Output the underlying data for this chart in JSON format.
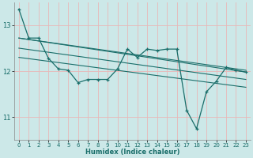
{
  "xlabel": "Humidex (Indice chaleur)",
  "ylabel": "",
  "background_color": "#cce8e8",
  "grid_color": "#e8b8b8",
  "line_color": "#1a6e6a",
  "x_values": [
    0,
    1,
    2,
    3,
    4,
    5,
    6,
    7,
    8,
    9,
    10,
    11,
    12,
    13,
    14,
    15,
    16,
    17,
    18,
    19,
    20,
    21,
    22,
    23
  ],
  "series1": [
    13.35,
    12.72,
    12.72,
    12.28,
    12.05,
    12.02,
    11.75,
    11.82,
    11.82,
    11.82,
    12.05,
    12.48,
    12.3,
    12.48,
    12.45,
    12.48,
    12.48,
    11.15,
    10.75,
    11.55,
    11.78,
    12.08,
    12.02,
    11.98
  ],
  "trend_lines": [
    {
      "x0": 0,
      "y0": 12.72,
      "x1": 23,
      "y1": 11.98
    },
    {
      "x0": 0,
      "y0": 12.72,
      "x1": 23,
      "y1": 12.02
    },
    {
      "x0": 0,
      "y0": 12.5,
      "x1": 23,
      "y1": 11.82
    },
    {
      "x0": 0,
      "y0": 12.3,
      "x1": 23,
      "y1": 11.65
    }
  ],
  "ylim": [
    10.5,
    13.5
  ],
  "yticks": [
    11,
    12,
    13
  ],
  "xticks": [
    0,
    1,
    2,
    3,
    4,
    5,
    6,
    7,
    8,
    9,
    10,
    11,
    12,
    13,
    14,
    15,
    16,
    17,
    18,
    19,
    20,
    21,
    22,
    23
  ]
}
